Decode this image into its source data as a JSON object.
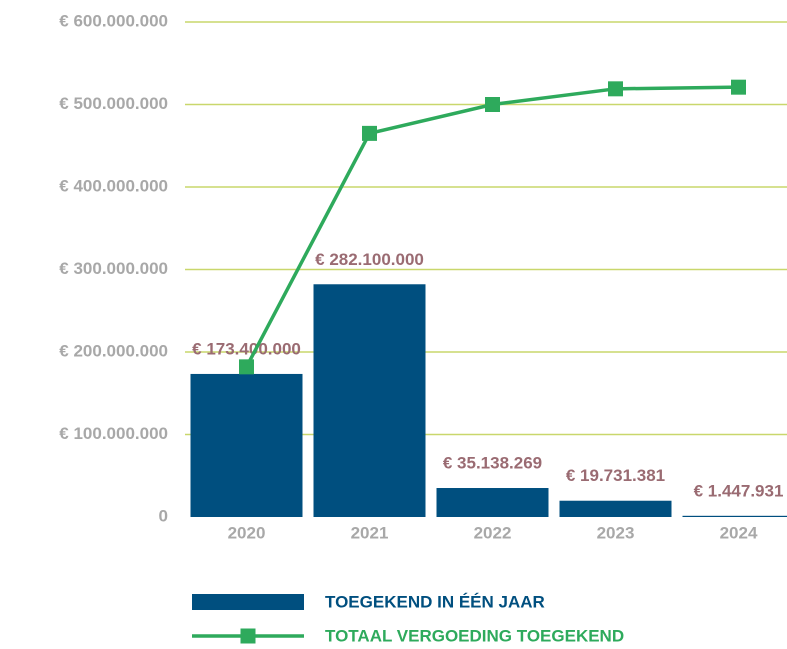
{
  "chart_data": {
    "type": "bar",
    "categories": [
      "2020",
      "2021",
      "2022",
      "2023",
      "2024"
    ],
    "series": [
      {
        "name": "TOEGEKEND IN ÉÉN JAAR",
        "type": "bar",
        "color": "#004f7f",
        "values": [
          173400000,
          282100000,
          35138269,
          19731381,
          1447931
        ],
        "value_labels": [
          "€ 173.400.000",
          "€ 282.100.000",
          "€ 35.138.269",
          "€ 19.731.381",
          "€ 1.447.931"
        ]
      },
      {
        "name": "TOTAAL VERGOEDING TOEGEKEND",
        "type": "line",
        "color": "#2eaa5c",
        "values": [
          182000000,
          465000000,
          500000000,
          519000000,
          521000000
        ]
      }
    ],
    "ylim": [
      0,
      600000000
    ],
    "yticks": [
      0,
      {
        "value": 100000000,
        "label": "€ 100.000.000"
      },
      {
        "value": 200000000,
        "label": "€ 200.000.000"
      },
      {
        "value": 300000000,
        "label": "€ 300.000.000"
      },
      {
        "value": 400000000,
        "label": "€ 400.000.000"
      },
      {
        "value": 500000000,
        "label": "€ 500.000.000"
      },
      {
        "value": 600000000,
        "label": "€ 600.000.000"
      }
    ],
    "grid": true,
    "grid_color": "#c9d76c",
    "legend": "bottom"
  }
}
